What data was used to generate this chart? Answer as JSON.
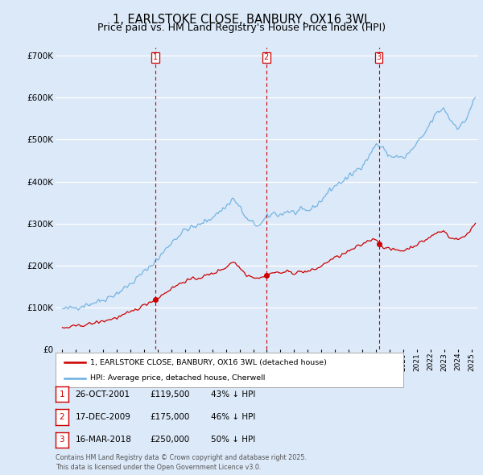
{
  "title": "1, EARLSTOKE CLOSE, BANBURY, OX16 3WL",
  "subtitle": "Price paid vs. HM Land Registry's House Price Index (HPI)",
  "legend_line1": "1, EARLSTOKE CLOSE, BANBURY, OX16 3WL (detached house)",
  "legend_line2": "HPI: Average price, detached house, Cherwell",
  "footer": "Contains HM Land Registry data © Crown copyright and database right 2025.\nThis data is licensed under the Open Government Licence v3.0.",
  "transactions": [
    {
      "num": 1,
      "date": "26-OCT-2001",
      "price": 119500,
      "year": 2001.82,
      "pct": "43% ↓ HPI"
    },
    {
      "num": 2,
      "date": "17-DEC-2009",
      "price": 175000,
      "year": 2009.96,
      "pct": "46% ↓ HPI"
    },
    {
      "num": 3,
      "date": "16-MAR-2018",
      "price": 250000,
      "year": 2018.21,
      "pct": "50% ↓ HPI"
    }
  ],
  "ylim": [
    0,
    720000
  ],
  "yticks": [
    0,
    100000,
    200000,
    300000,
    400000,
    500000,
    600000,
    700000
  ],
  "ytick_labels": [
    "£0",
    "£100K",
    "£200K",
    "£300K",
    "£400K",
    "£500K",
    "£600K",
    "£700K"
  ],
  "xlim_start": 1994.5,
  "xlim_end": 2025.5,
  "background_color": "#dce9f8",
  "plot_bg_color": "#dce9f8",
  "grid_color": "#ffffff",
  "hpi_color": "#6aaee0",
  "price_color": "#cc0000",
  "vline_color": "#cc0000",
  "title_fontsize": 10.5,
  "subtitle_fontsize": 9,
  "hpi_knots": [
    [
      1995.0,
      95000
    ],
    [
      1995.5,
      97000
    ],
    [
      1996.0,
      100000
    ],
    [
      1997.0,
      108000
    ],
    [
      1998.0,
      118000
    ],
    [
      1999.0,
      133000
    ],
    [
      2000.0,
      155000
    ],
    [
      2001.0,
      185000
    ],
    [
      2002.0,
      215000
    ],
    [
      2003.0,
      255000
    ],
    [
      2004.0,
      285000
    ],
    [
      2005.0,
      295000
    ],
    [
      2006.0,
      315000
    ],
    [
      2007.0,
      340000
    ],
    [
      2007.5,
      360000
    ],
    [
      2008.0,
      340000
    ],
    [
      2008.5,
      310000
    ],
    [
      2009.0,
      300000
    ],
    [
      2009.5,
      295000
    ],
    [
      2010.0,
      315000
    ],
    [
      2010.5,
      325000
    ],
    [
      2011.0,
      320000
    ],
    [
      2011.5,
      330000
    ],
    [
      2012.0,
      325000
    ],
    [
      2012.5,
      330000
    ],
    [
      2013.0,
      330000
    ],
    [
      2013.5,
      340000
    ],
    [
      2014.0,
      355000
    ],
    [
      2014.5,
      375000
    ],
    [
      2015.0,
      390000
    ],
    [
      2015.5,
      400000
    ],
    [
      2016.0,
      410000
    ],
    [
      2016.5,
      425000
    ],
    [
      2017.0,
      440000
    ],
    [
      2017.5,
      460000
    ],
    [
      2018.0,
      490000
    ],
    [
      2018.5,
      480000
    ],
    [
      2019.0,
      460000
    ],
    [
      2019.5,
      460000
    ],
    [
      2020.0,
      455000
    ],
    [
      2020.5,
      470000
    ],
    [
      2021.0,
      490000
    ],
    [
      2021.5,
      510000
    ],
    [
      2022.0,
      540000
    ],
    [
      2022.5,
      565000
    ],
    [
      2023.0,
      575000
    ],
    [
      2023.5,
      545000
    ],
    [
      2024.0,
      530000
    ],
    [
      2024.5,
      540000
    ],
    [
      2025.0,
      580000
    ],
    [
      2025.3,
      600000
    ]
  ],
  "price_knots": [
    [
      1995.0,
      50000
    ],
    [
      1995.5,
      52000
    ],
    [
      1996.0,
      55000
    ],
    [
      1997.0,
      60000
    ],
    [
      1998.0,
      67000
    ],
    [
      1999.0,
      75000
    ],
    [
      2000.0,
      88000
    ],
    [
      2001.0,
      105000
    ],
    [
      2001.82,
      119500
    ],
    [
      2002.0,
      122000
    ],
    [
      2003.0,
      145000
    ],
    [
      2004.0,
      163000
    ],
    [
      2005.0,
      170000
    ],
    [
      2006.0,
      180000
    ],
    [
      2007.0,
      195000
    ],
    [
      2007.5,
      210000
    ],
    [
      2008.0,
      195000
    ],
    [
      2008.5,
      178000
    ],
    [
      2009.0,
      172000
    ],
    [
      2009.5,
      170000
    ],
    [
      2009.96,
      175000
    ],
    [
      2010.0,
      178000
    ],
    [
      2010.5,
      183000
    ],
    [
      2011.0,
      182000
    ],
    [
      2011.5,
      185000
    ],
    [
      2012.0,
      182000
    ],
    [
      2012.5,
      185000
    ],
    [
      2013.0,
      185000
    ],
    [
      2013.5,
      190000
    ],
    [
      2014.0,
      198000
    ],
    [
      2014.5,
      210000
    ],
    [
      2015.0,
      218000
    ],
    [
      2015.5,
      225000
    ],
    [
      2016.0,
      233000
    ],
    [
      2016.5,
      242000
    ],
    [
      2017.0,
      250000
    ],
    [
      2017.5,
      260000
    ],
    [
      2018.0,
      265000
    ],
    [
      2018.21,
      250000
    ],
    [
      2018.5,
      245000
    ],
    [
      2019.0,
      238000
    ],
    [
      2019.5,
      237000
    ],
    [
      2020.0,
      235000
    ],
    [
      2020.5,
      242000
    ],
    [
      2021.0,
      250000
    ],
    [
      2021.5,
      258000
    ],
    [
      2022.0,
      268000
    ],
    [
      2022.5,
      278000
    ],
    [
      2023.0,
      282000
    ],
    [
      2023.5,
      265000
    ],
    [
      2024.0,
      262000
    ],
    [
      2024.5,
      268000
    ],
    [
      2025.0,
      288000
    ],
    [
      2025.3,
      300000
    ]
  ]
}
